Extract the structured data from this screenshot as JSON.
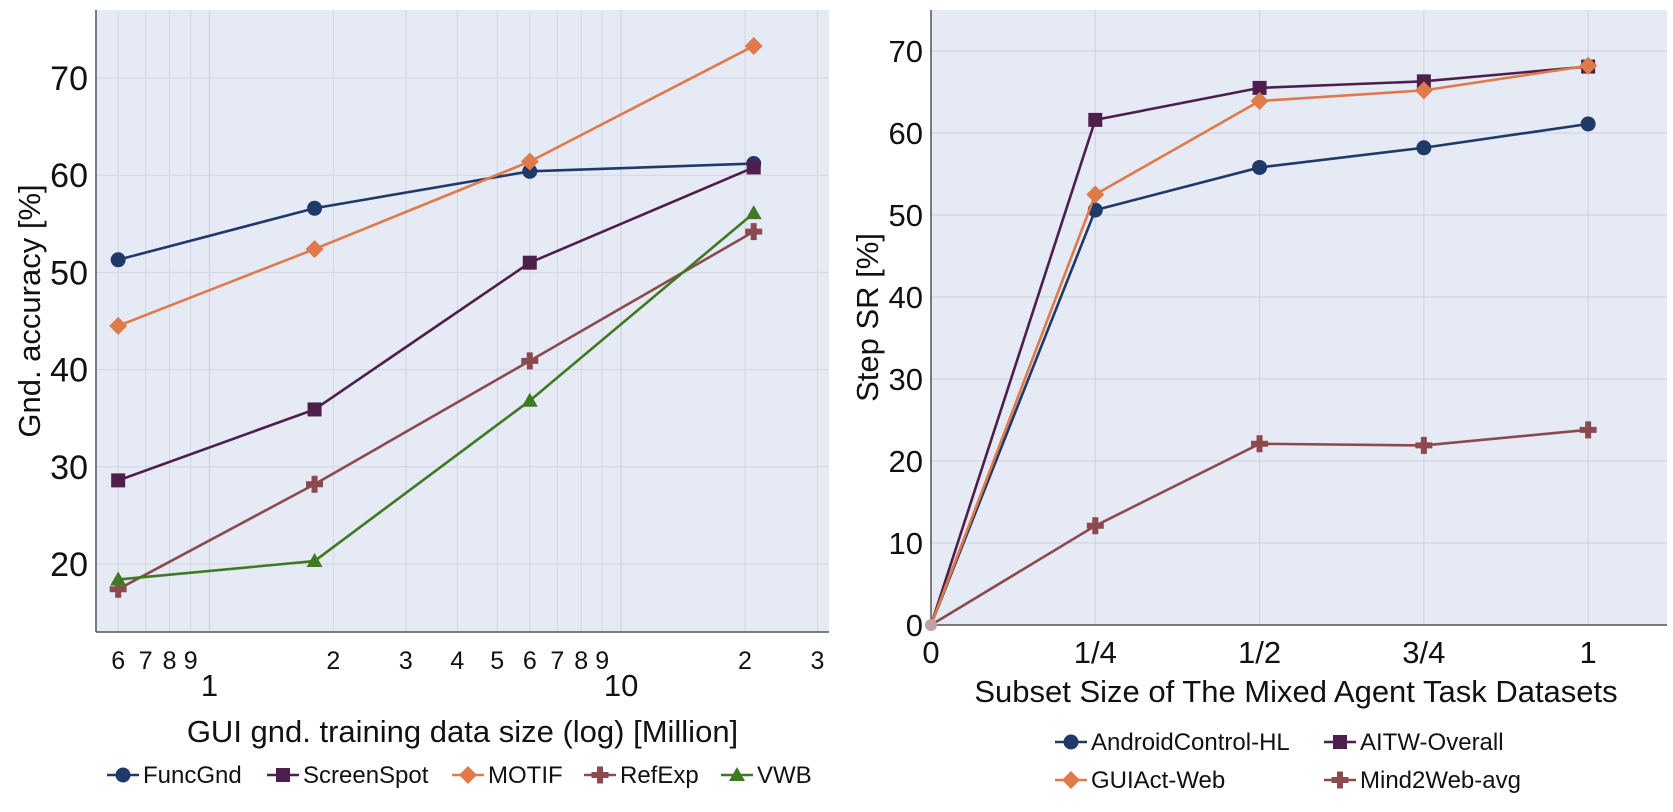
{
  "chart_data": [
    {
      "type": "line",
      "title": "",
      "xlabel": "GUI gnd. training data size (log) [Million]",
      "ylabel": "Gnd. accuracy [%]",
      "xscale": "log",
      "xlim": [
        0.53,
        32
      ],
      "ylim": [
        13,
        77
      ],
      "grid": true,
      "legend_position": "bottom",
      "x_major_ticks": [
        {
          "v": 1,
          "label": "1"
        },
        {
          "v": 10,
          "label": "10"
        }
      ],
      "x_minor_ticks": [
        {
          "v": 0.6,
          "label": "6"
        },
        {
          "v": 0.7,
          "label": "7"
        },
        {
          "v": 0.8,
          "label": "8"
        },
        {
          "v": 0.9,
          "label": "9"
        },
        {
          "v": 2,
          "label": "2"
        },
        {
          "v": 3,
          "label": "3"
        },
        {
          "v": 4,
          "label": "4"
        },
        {
          "v": 5,
          "label": "5"
        },
        {
          "v": 6,
          "label": "6"
        },
        {
          "v": 7,
          "label": "7"
        },
        {
          "v": 8,
          "label": "8"
        },
        {
          "v": 9,
          "label": "9"
        },
        {
          "v": 20,
          "label": "2"
        },
        {
          "v": 30,
          "label": "3"
        }
      ],
      "y_ticks": [
        20,
        30,
        40,
        50,
        60,
        70
      ],
      "x": [
        0.6,
        1.8,
        6.0,
        21.0
      ],
      "series": [
        {
          "name": "FuncGnd",
          "color": "#1f3a68",
          "marker": "circle",
          "values": [
            51.3,
            56.6,
            60.4,
            61.2
          ]
        },
        {
          "name": "ScreenSpot",
          "color": "#4e1f4c",
          "marker": "square",
          "values": [
            28.6,
            35.9,
            51.0,
            60.8
          ]
        },
        {
          "name": "MOTIF",
          "color": "#e07a4a",
          "marker": "diamond",
          "values": [
            44.5,
            52.4,
            61.4,
            73.3
          ]
        },
        {
          "name": "RefExp",
          "color": "#8b4a4f",
          "marker": "plus",
          "values": [
            17.4,
            28.2,
            40.9,
            54.2
          ]
        },
        {
          "name": "VWB",
          "color": "#3e7a22",
          "marker": "triangle",
          "values": [
            18.4,
            20.3,
            36.8,
            56.1
          ]
        }
      ]
    },
    {
      "type": "line",
      "title": "",
      "xlabel": "Subset Size of The Mixed Agent Task Datasets",
      "ylabel": "Step SR [%]",
      "xlim": [
        0,
        1.12
      ],
      "ylim": [
        0,
        75
      ],
      "grid": true,
      "legend_position": "bottom",
      "x_ticks": [
        {
          "v": 0,
          "label": "0"
        },
        {
          "v": 0.25,
          "label": "1/4"
        },
        {
          "v": 0.5,
          "label": "1/2"
        },
        {
          "v": 0.75,
          "label": "3/4"
        },
        {
          "v": 1,
          "label": "1"
        }
      ],
      "y_ticks": [
        0,
        10,
        20,
        30,
        40,
        50,
        60,
        70
      ],
      "x": [
        0,
        0.25,
        0.5,
        0.75,
        1
      ],
      "series": [
        {
          "name": "AndroidControl-HL",
          "color": "#1f3a68",
          "marker": "circle",
          "values": [
            0,
            50.6,
            55.8,
            58.2,
            61.1
          ]
        },
        {
          "name": "AITW-Overall",
          "color": "#4e1f4c",
          "marker": "square",
          "values": [
            0,
            61.6,
            65.5,
            66.3,
            68.1
          ]
        },
        {
          "name": "GUIAct-Web",
          "color": "#e07a4a",
          "marker": "diamond",
          "values": [
            0,
            52.5,
            63.9,
            65.2,
            68.2
          ]
        },
        {
          "name": "Mind2Web-avg",
          "color": "#8b4a4f",
          "marker": "plus",
          "values": [
            0,
            12.1,
            22.1,
            21.9,
            23.8
          ]
        }
      ]
    }
  ]
}
